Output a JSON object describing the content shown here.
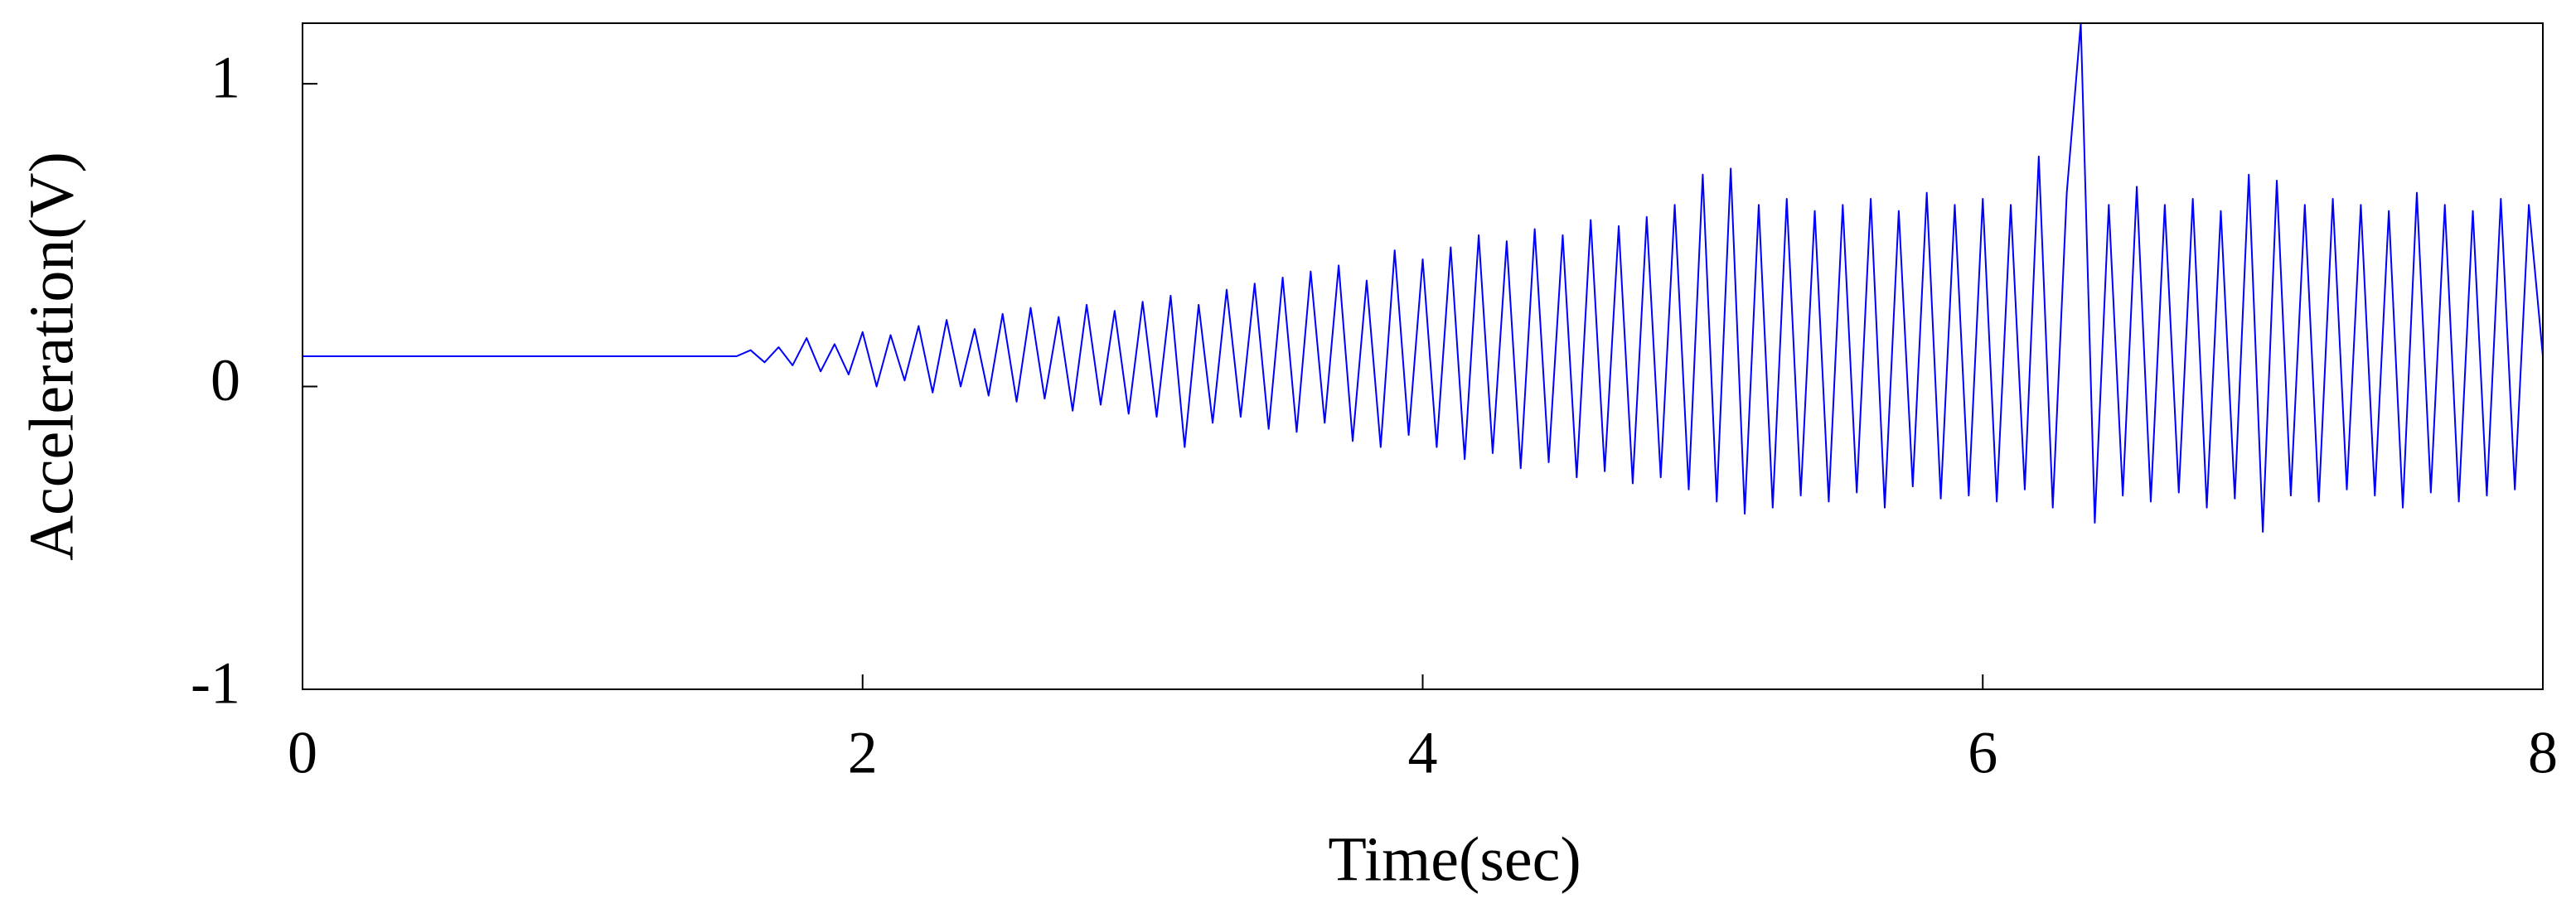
{
  "chart_data": {
    "type": "line",
    "xlabel": "Time(sec)",
    "ylabel": "Acceleration(V)",
    "xlim": [
      0,
      8
    ],
    "xticks": [
      0,
      2,
      4,
      6,
      8
    ],
    "ylim": [
      -1,
      1.2
    ],
    "yticks": [
      -1,
      0,
      1
    ],
    "grid": false,
    "color": "#0000ff",
    "x": [
      0,
      0.05,
      0.1,
      0.15,
      0.2,
      0.25,
      0.3,
      0.35,
      0.4,
      0.45,
      0.5,
      0.55,
      0.6,
      0.65,
      0.7,
      0.75,
      0.8,
      0.85,
      0.9,
      0.95,
      1,
      1.05,
      1.1,
      1.15,
      1.2,
      1.25,
      1.3,
      1.35,
      1.4,
      1.45,
      1.5,
      1.55,
      1.6,
      1.65,
      1.7,
      1.75,
      1.8,
      1.85,
      1.9,
      1.95,
      2,
      2.05,
      2.1,
      2.15,
      2.2,
      2.25,
      2.3,
      2.35,
      2.4,
      2.45,
      2.5,
      2.55,
      2.6,
      2.65,
      2.7,
      2.75,
      2.8,
      2.85,
      2.9,
      2.95,
      3,
      3.05,
      3.1,
      3.15,
      3.2,
      3.25,
      3.3,
      3.35,
      3.4,
      3.45,
      3.5,
      3.55,
      3.6,
      3.65,
      3.7,
      3.75,
      3.8,
      3.85,
      3.9,
      3.95,
      4,
      4.05,
      4.1,
      4.15,
      4.2,
      4.25,
      4.3,
      4.35,
      4.4,
      4.45,
      4.5,
      4.55,
      4.6,
      4.65,
      4.7,
      4.75,
      4.8,
      4.85,
      4.9,
      4.95,
      5,
      5.05,
      5.1,
      5.15,
      5.2,
      5.25,
      5.3,
      5.35,
      5.4,
      5.45,
      5.5,
      5.55,
      5.6,
      5.65,
      5.7,
      5.75,
      5.8,
      5.85,
      5.9,
      5.95,
      6,
      6.05,
      6.1,
      6.15,
      6.2,
      6.25,
      6.3,
      6.35,
      6.4,
      6.45,
      6.5,
      6.55,
      6.6,
      6.65,
      6.7,
      6.75,
      6.8,
      6.85,
      6.9,
      6.95,
      7,
      7.05,
      7.1,
      7.15,
      7.2,
      7.25,
      7.3,
      7.35,
      7.4,
      7.45,
      7.5,
      7.55,
      7.6,
      7.65,
      7.7,
      7.75,
      7.8,
      7.85,
      7.9,
      7.95,
      8
    ],
    "values": [
      0.1,
      0.1,
      0.1,
      0.1,
      0.1,
      0.1,
      0.1,
      0.1,
      0.1,
      0.1,
      0.1,
      0.1,
      0.1,
      0.1,
      0.1,
      0.1,
      0.1,
      0.1,
      0.1,
      0.1,
      0.1,
      0.1,
      0.1,
      0.1,
      0.1,
      0.1,
      0.1,
      0.1,
      0.1,
      0.1,
      0.1,
      0.1,
      0.12,
      0.08,
      0.13,
      0.07,
      0.16,
      0.05,
      0.14,
      0.04,
      0.18,
      0.0,
      0.17,
      0.02,
      0.2,
      -0.02,
      0.22,
      0.0,
      0.19,
      -0.03,
      0.24,
      -0.05,
      0.26,
      -0.04,
      0.23,
      -0.08,
      0.27,
      -0.06,
      0.25,
      -0.09,
      0.28,
      -0.1,
      0.3,
      -0.2,
      0.27,
      -0.12,
      0.32,
      -0.1,
      0.34,
      -0.14,
      0.36,
      -0.15,
      0.38,
      -0.12,
      0.4,
      -0.18,
      0.35,
      -0.2,
      0.45,
      -0.16,
      0.42,
      -0.2,
      0.46,
      -0.24,
      0.5,
      -0.22,
      0.48,
      -0.27,
      0.52,
      -0.25,
      0.5,
      -0.3,
      0.55,
      -0.28,
      0.53,
      -0.32,
      0.56,
      -0.3,
      0.6,
      -0.34,
      0.7,
      -0.38,
      0.72,
      -0.42,
      0.6,
      -0.4,
      0.62,
      -0.36,
      0.58,
      -0.38,
      0.6,
      -0.35,
      0.62,
      -0.4,
      0.58,
      -0.33,
      0.64,
      -0.37,
      0.6,
      -0.36,
      0.62,
      -0.38,
      0.6,
      -0.34,
      0.76,
      -0.4,
      0.64,
      1.2,
      -0.45,
      0.6,
      -0.36,
      0.66,
      -0.38,
      0.6,
      -0.35,
      0.62,
      -0.4,
      0.58,
      -0.37,
      0.7,
      -0.48,
      0.68,
      -0.36,
      0.6,
      -0.38,
      0.62,
      -0.34,
      0.6,
      -0.36,
      0.58,
      -0.4,
      0.64,
      -0.35,
      0.6,
      -0.38,
      0.58,
      -0.36,
      0.62,
      -0.34,
      0.6,
      0.1
    ]
  }
}
